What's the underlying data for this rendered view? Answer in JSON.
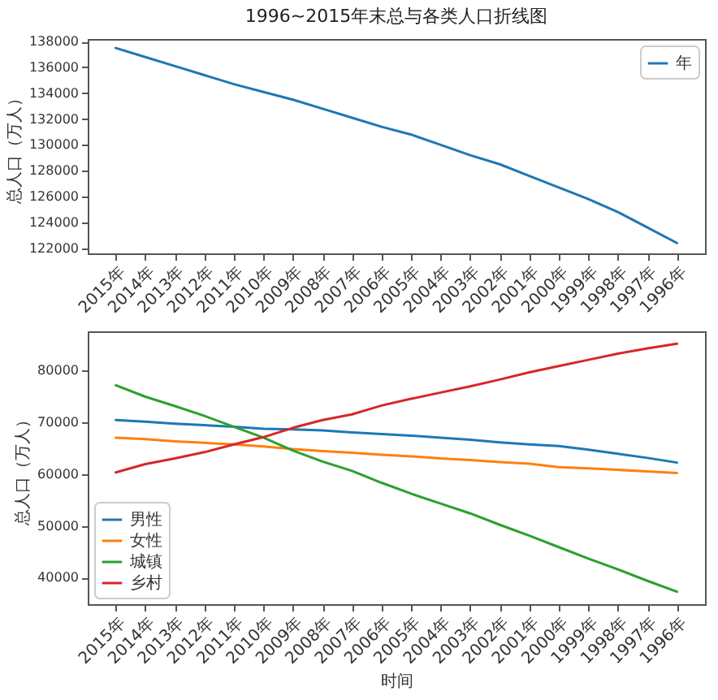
{
  "chart_data": [
    {
      "type": "line",
      "title": "1996~2015年末总与各类人口折线图",
      "ylabel": "总人口（万人）",
      "categories": [
        "2015年",
        "2014年",
        "2013年",
        "2012年",
        "2011年",
        "2010年",
        "2009年",
        "2008年",
        "2007年",
        "2006年",
        "2005年",
        "2004年",
        "2003年",
        "2002年",
        "2001年",
        "2000年",
        "1999年",
        "1998年",
        "1997年",
        "1996年"
      ],
      "series": [
        {
          "name": "年",
          "color": "#1f77b4",
          "values": [
            137500,
            136800,
            136100,
            135400,
            134700,
            134100,
            133500,
            132800,
            132100,
            131400,
            130800,
            130000,
            129200,
            128500,
            127600,
            126700,
            125800,
            124800,
            123600,
            122400
          ]
        }
      ],
      "ylim": [
        121600,
        138200
      ],
      "yticks": [
        122000,
        124000,
        126000,
        128000,
        130000,
        132000,
        134000,
        136000,
        138000
      ],
      "legend": "top right"
    },
    {
      "type": "line",
      "xlabel": "时间",
      "ylabel": "总人口（万人）",
      "categories": [
        "2015年",
        "2014年",
        "2013年",
        "2012年",
        "2011年",
        "2010年",
        "2009年",
        "2008年",
        "2007年",
        "2006年",
        "2005年",
        "2004年",
        "2003年",
        "2002年",
        "2001年",
        "2000年",
        "1999年",
        "1998年",
        "1997年",
        "1996年"
      ],
      "series": [
        {
          "name": "男性",
          "color": "#1f77b4",
          "values": [
            70400,
            70100,
            69700,
            69400,
            69100,
            68700,
            68600,
            68400,
            68000,
            67700,
            67400,
            67000,
            66600,
            66100,
            65700,
            65400,
            64700,
            63900,
            63100,
            62200
          ]
        },
        {
          "name": "女性",
          "color": "#ff7f0e",
          "values": [
            67000,
            66700,
            66300,
            66000,
            65700,
            65300,
            64800,
            64400,
            64100,
            63700,
            63400,
            63000,
            62700,
            62300,
            62000,
            61300,
            61100,
            60800,
            60500,
            60200
          ]
        },
        {
          "name": "城镇",
          "color": "#2ca02c",
          "values": [
            77100,
            74900,
            73100,
            71200,
            69100,
            67000,
            64500,
            62400,
            60600,
            58300,
            56200,
            54300,
            52400,
            50200,
            48100,
            45900,
            43700,
            41600,
            39400,
            37300
          ]
        },
        {
          "name": "乡村",
          "color": "#d62728",
          "values": [
            60300,
            61900,
            63000,
            64200,
            65700,
            67100,
            68900,
            70400,
            71500,
            73200,
            74500,
            75700,
            76900,
            78200,
            79600,
            80800,
            82000,
            83200,
            84200,
            85100
          ]
        }
      ],
      "ylim": [
        34900,
        87500
      ],
      "yticks": [
        40000,
        50000,
        60000,
        70000,
        80000
      ],
      "legend": "bottom left"
    }
  ]
}
